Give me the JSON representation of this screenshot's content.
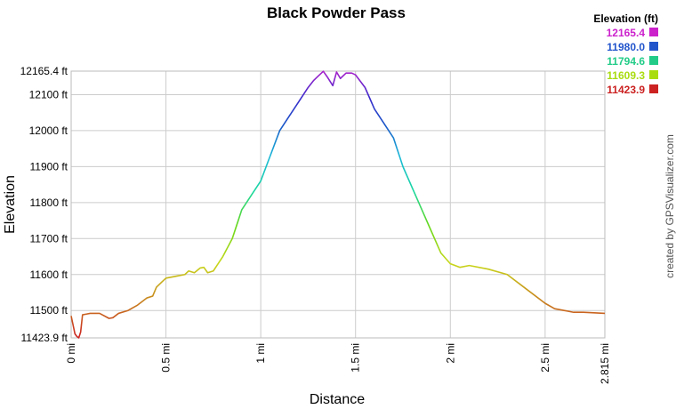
{
  "chart_data": {
    "type": "line",
    "title": "Black Powder Pass",
    "xlabel": "Distance",
    "ylabel": "Elevation",
    "xlim": [
      0,
      2.815
    ],
    "ylim": [
      11423.9,
      12165.4
    ],
    "grid": true,
    "x_ticks": [
      {
        "value": 0,
        "label": "0 mi"
      },
      {
        "value": 0.5,
        "label": "0.5 mi"
      },
      {
        "value": 1,
        "label": "1 mi"
      },
      {
        "value": 1.5,
        "label": "1.5 mi"
      },
      {
        "value": 2,
        "label": "2 mi"
      },
      {
        "value": 2.5,
        "label": "2.5 mi"
      },
      {
        "value": 2.815,
        "label": "2.815 mi"
      }
    ],
    "y_ticks": [
      {
        "value": 11423.9,
        "label": "11423.9 ft"
      },
      {
        "value": 11500,
        "label": "11500 ft"
      },
      {
        "value": 11600,
        "label": "11600 ft"
      },
      {
        "value": 11700,
        "label": "11700 ft"
      },
      {
        "value": 11800,
        "label": "11800 ft"
      },
      {
        "value": 11900,
        "label": "11900 ft"
      },
      {
        "value": 12000,
        "label": "12000 ft"
      },
      {
        "value": 12100,
        "label": "12100 ft"
      },
      {
        "value": 12165.4,
        "label": "12165.4 ft"
      }
    ],
    "legend": {
      "title": "Elevation (ft)",
      "position": "top-right",
      "items": [
        {
          "label": "12165.4",
          "color": "#cc22cc"
        },
        {
          "label": "11980.0",
          "color": "#2255cc"
        },
        {
          "label": "11794.6",
          "color": "#22cc88"
        },
        {
          "label": "11609.3",
          "color": "#aadd11"
        },
        {
          "label": "11423.9",
          "color": "#cc2222"
        }
      ]
    },
    "series": [
      {
        "x": [
          0,
          0.01,
          0.02,
          0.03,
          0.04,
          0.05,
          0.06,
          0.08,
          0.1,
          0.15,
          0.2,
          0.22,
          0.25,
          0.3,
          0.35,
          0.4,
          0.43,
          0.45,
          0.48,
          0.5,
          0.55,
          0.6,
          0.62,
          0.65,
          0.68,
          0.7,
          0.72,
          0.75,
          0.8,
          0.85,
          0.9,
          0.95,
          1,
          1.05,
          1.1,
          1.15,
          1.2,
          1.25,
          1.28,
          1.3,
          1.33,
          1.35,
          1.38,
          1.4,
          1.42,
          1.45,
          1.48,
          1.5,
          1.55,
          1.6,
          1.65,
          1.7,
          1.75,
          1.8,
          1.85,
          1.9,
          1.95,
          2,
          2.05,
          2.1,
          2.2,
          2.3,
          2.4,
          2.5,
          2.55,
          2.6,
          2.65,
          2.7,
          2.815
        ],
        "y": [
          11485,
          11460,
          11435,
          11428,
          11424,
          11440,
          11488,
          11490,
          11492,
          11492,
          11478,
          11480,
          11492,
          11500,
          11515,
          11535,
          11540,
          11565,
          11580,
          11590,
          11595,
          11600,
          11610,
          11605,
          11618,
          11620,
          11605,
          11610,
          11650,
          11700,
          11780,
          11820,
          11860,
          11930,
          12000,
          12040,
          12080,
          12120,
          12140,
          12150,
          12165,
          12150,
          12125,
          12163,
          12145,
          12160,
          12160,
          12155,
          12120,
          12060,
          12020,
          11980,
          11900,
          11840,
          11780,
          11720,
          11660,
          11630,
          11620,
          11625,
          11615,
          11600,
          11560,
          11520,
          11505,
          11500,
          11495,
          11495,
          11492
        ]
      }
    ]
  },
  "credit": "created by GPSVisualizer.com"
}
